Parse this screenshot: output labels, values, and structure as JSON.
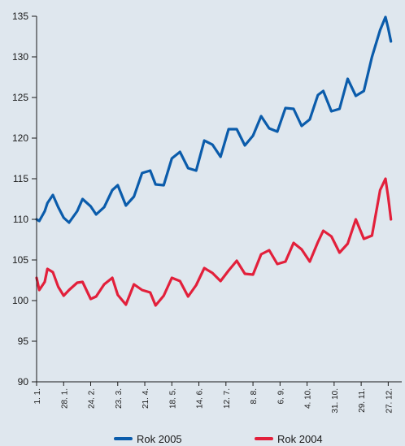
{
  "chart_data": {
    "type": "line",
    "title": "",
    "xlabel": "",
    "ylabel": "",
    "ylim": [
      90,
      135
    ],
    "yticks": [
      90,
      95,
      100,
      105,
      110,
      115,
      120,
      125,
      130,
      135
    ],
    "categories": [
      "1. 1.",
      "28. 1.",
      "24. 2.",
      "23. 3.",
      "21. 4.",
      "18. 5.",
      "14. 6.",
      "12. 7.",
      "8. 8.",
      "6. 9.",
      "4. 10.",
      "31. 10.",
      "29. 11.",
      "27. 12."
    ],
    "grid": false,
    "legend_position": "bottom",
    "series": [
      {
        "name": "Rok 2005",
        "color": "#0b5cab",
        "x": [
          0.0,
          0.1,
          0.3,
          0.4,
          0.6,
          0.8,
          1.0,
          1.2,
          1.5,
          1.7,
          2.0,
          2.2,
          2.5,
          2.8,
          3.0,
          3.3,
          3.6,
          3.9,
          4.2,
          4.4,
          4.7,
          5.0,
          5.3,
          5.6,
          5.9,
          6.2,
          6.5,
          6.8,
          7.1,
          7.4,
          7.7,
          8.0,
          8.3,
          8.6,
          8.9,
          9.2,
          9.5,
          9.8,
          10.1,
          10.4,
          10.6,
          10.9,
          11.2,
          11.5,
          11.8,
          12.1,
          12.4,
          12.7,
          12.9,
          13.0,
          13.1
        ],
        "values": [
          110.0,
          109.8,
          111.0,
          112.0,
          113.0,
          111.5,
          110.2,
          109.6,
          111.0,
          112.5,
          111.6,
          110.6,
          111.5,
          113.6,
          114.2,
          111.7,
          112.8,
          115.7,
          116.0,
          114.3,
          114.2,
          117.5,
          118.3,
          116.3,
          116.0,
          119.7,
          119.2,
          117.7,
          121.1,
          121.1,
          119.1,
          120.3,
          122.7,
          121.2,
          120.8,
          123.7,
          123.6,
          121.5,
          122.3,
          125.3,
          125.8,
          123.3,
          123.6,
          127.3,
          125.2,
          125.8,
          130.0,
          133.3,
          134.9,
          133.5,
          131.9
        ]
      },
      {
        "name": "Rok 2004",
        "color": "#e2203b",
        "x": [
          0.0,
          0.1,
          0.3,
          0.4,
          0.6,
          0.8,
          1.0,
          1.2,
          1.5,
          1.7,
          2.0,
          2.2,
          2.5,
          2.8,
          3.0,
          3.3,
          3.6,
          3.9,
          4.2,
          4.4,
          4.7,
          5.0,
          5.3,
          5.6,
          5.9,
          6.2,
          6.5,
          6.8,
          7.1,
          7.4,
          7.7,
          8.0,
          8.3,
          8.6,
          8.9,
          9.2,
          9.5,
          9.8,
          10.1,
          10.4,
          10.6,
          10.9,
          11.2,
          11.5,
          11.8,
          12.1,
          12.4,
          12.7,
          12.9,
          13.0,
          13.1
        ],
        "values": [
          102.8,
          101.3,
          102.3,
          103.9,
          103.5,
          101.7,
          100.6,
          101.3,
          102.2,
          102.3,
          100.2,
          100.5,
          102.0,
          102.8,
          100.7,
          99.5,
          102.0,
          101.3,
          101.0,
          99.4,
          100.6,
          102.8,
          102.4,
          100.5,
          101.9,
          104.0,
          103.4,
          102.4,
          103.7,
          104.9,
          103.3,
          103.2,
          105.7,
          106.2,
          104.5,
          104.8,
          107.1,
          106.3,
          104.8,
          107.2,
          108.6,
          107.9,
          105.9,
          107.0,
          110.0,
          107.6,
          108.0,
          113.6,
          115.0,
          112.7,
          110.0
        ]
      }
    ]
  }
}
